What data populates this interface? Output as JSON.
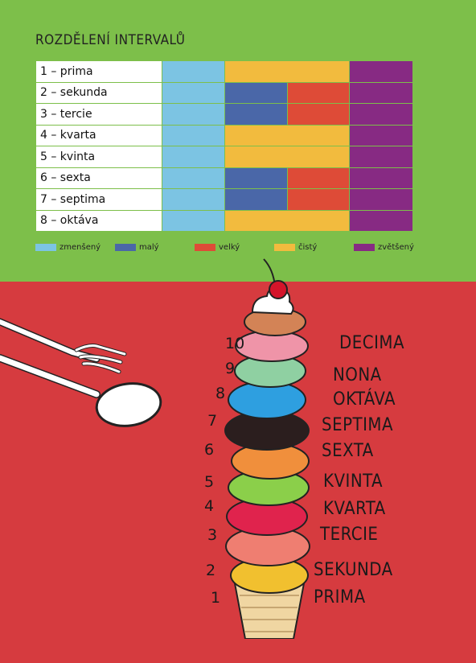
{
  "title": "ROZDĚLENÍ INTERVALŮ",
  "colors": {
    "zmenseny": "#7cc4e3",
    "maly": "#4a67a8",
    "velky": "#de4b37",
    "cisty": "#f2bb3e",
    "zvetseny": "#872a83"
  },
  "rows": [
    {
      "label": "1 – prima"
    },
    {
      "label": "2 – sekunda"
    },
    {
      "label": "3 – tercie"
    },
    {
      "label": "4 – kvarta"
    },
    {
      "label": "5 – kvinta"
    },
    {
      "label": "6 – sexta"
    },
    {
      "label": "7 – septima"
    },
    {
      "label": "8 – oktáva"
    }
  ],
  "legend": [
    {
      "label": "zmenšený",
      "color": "#7cc4e3"
    },
    {
      "label": "malý",
      "color": "#4a67a8"
    },
    {
      "label": "velký",
      "color": "#de4b37"
    },
    {
      "label": "čistý",
      "color": "#f2bb3e"
    },
    {
      "label": "zvětšený",
      "color": "#872a83"
    }
  ],
  "scoops": [
    {
      "num": "10",
      "label": "DECIMA"
    },
    {
      "num": "9",
      "label": "NONA"
    },
    {
      "num": "8",
      "label": "OKTÁVA"
    },
    {
      "num": "7",
      "label": "SEPTIMA"
    },
    {
      "num": "6",
      "label": "SEXTA"
    },
    {
      "num": "5",
      "label": "KVINTA"
    },
    {
      "num": "4",
      "label": "KVARTA"
    },
    {
      "num": "3",
      "label": "TERCIE"
    },
    {
      "num": "2",
      "label": "SEKUNDA"
    },
    {
      "num": "1",
      "label": "PRIMA"
    }
  ]
}
